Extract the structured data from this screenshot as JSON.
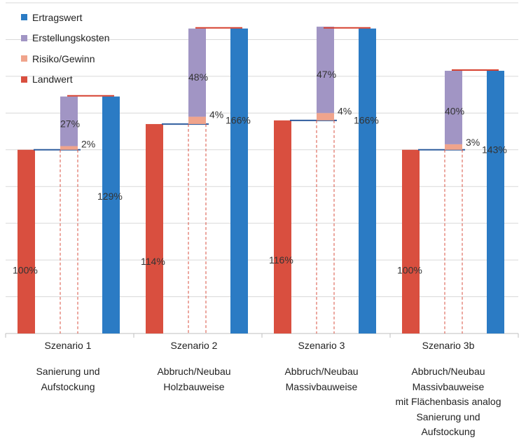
{
  "chart_data": {
    "type": "bar",
    "subtype": "waterfall",
    "categories": [
      "Szenario 1",
      "Szenario 2",
      "Szenario 3",
      "Szenario 3b"
    ],
    "descriptions": [
      [
        "Sanierung und",
        "Aufstockung"
      ],
      [
        "Abbruch/Neubau",
        "Holzbauweise"
      ],
      [
        "Abbruch/Neubau",
        "Massivbauweise"
      ],
      [
        "Abbruch/Neubau",
        "Massivbauweise",
        "mit Flächenbasis analog",
        "Sanierung und",
        "Aufstockung"
      ]
    ],
    "legend": [
      {
        "name": "Ertragswert",
        "color": "#2B7BC4"
      },
      {
        "name": "Erstellungskosten",
        "color": "#A195C4"
      },
      {
        "name": "Risiko/Gewinn",
        "color": "#F0A48C"
      },
      {
        "name": "Landwert",
        "color": "#D94F3F"
      }
    ],
    "series": [
      {
        "name": "Landwert",
        "color": "#D94F3F",
        "values": [
          100,
          114,
          116,
          100
        ],
        "labels": [
          "100%",
          "114%",
          "116%",
          "100%"
        ]
      },
      {
        "name": "Risiko/Gewinn",
        "color": "#F0A48C",
        "values": [
          2,
          4,
          4,
          3
        ],
        "labels": [
          "2%",
          "4%",
          "4%",
          "3%"
        ]
      },
      {
        "name": "Erstellungskosten",
        "color": "#A195C4",
        "values": [
          27,
          48,
          47,
          40
        ],
        "labels": [
          "27%",
          "48%",
          "47%",
          "40%"
        ]
      },
      {
        "name": "Ertragswert",
        "color": "#2B7BC4",
        "values": [
          129,
          166,
          166,
          143
        ],
        "labels": [
          "129%",
          "166%",
          "166%",
          "143%"
        ]
      }
    ],
    "ylim": [
      0,
      180
    ],
    "gridlines": true
  }
}
